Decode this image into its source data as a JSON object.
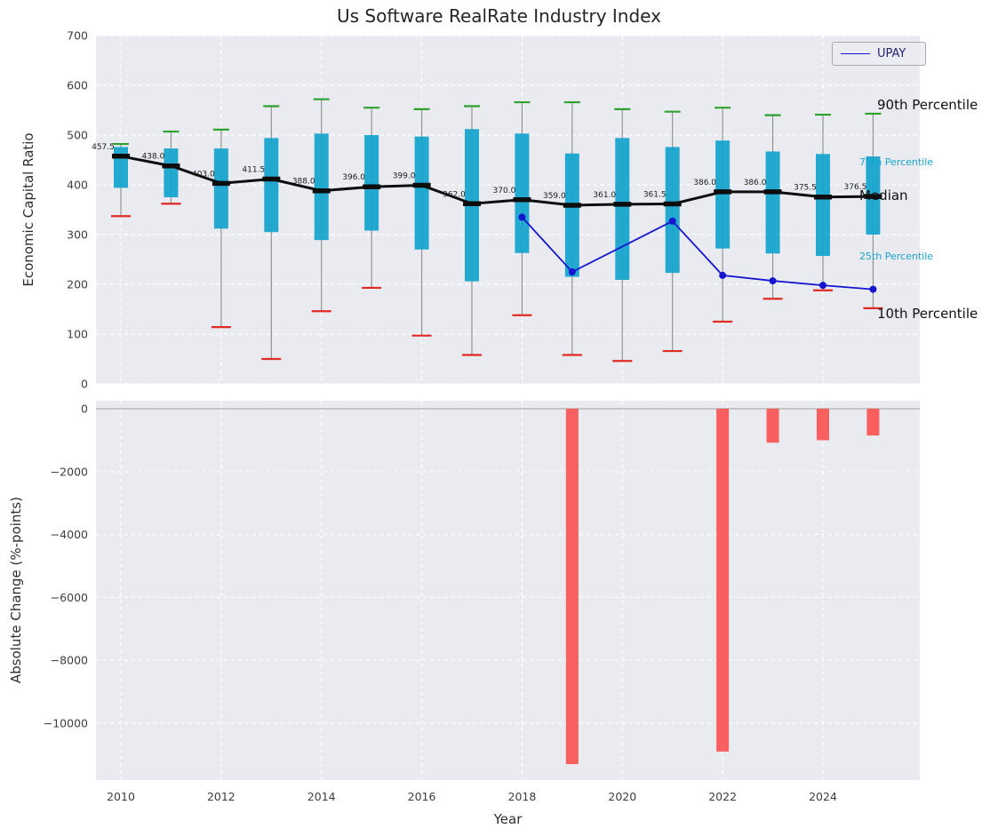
{
  "chart_data": {
    "type": "boxplot-line-bar-combo",
    "title": "Us Software RealRate Industry Index",
    "xlabel": "Year",
    "xticks": [
      2010,
      2012,
      2014,
      2016,
      2018,
      2020,
      2022,
      2024
    ],
    "top": {
      "ylabel": "Economic Capital Ratio",
      "ylim": [
        0,
        700
      ],
      "yticks": [
        0,
        100,
        200,
        300,
        400,
        500,
        600,
        700
      ],
      "years": [
        2010,
        2011,
        2012,
        2013,
        2014,
        2015,
        2016,
        2017,
        2018,
        2019,
        2020,
        2021,
        2022,
        2023,
        2024,
        2025
      ],
      "p90": [
        482,
        507,
        511,
        558,
        572,
        555,
        552,
        558,
        566,
        566,
        552,
        547,
        555,
        540,
        541,
        543
      ],
      "p75": [
        476,
        473,
        473,
        494,
        503,
        500,
        497,
        512,
        503,
        463,
        494,
        476,
        489,
        467,
        462,
        457
      ],
      "median": [
        457.5,
        438.0,
        403.0,
        411.5,
        388.0,
        396.0,
        399.0,
        362.0,
        370.0,
        359.0,
        361.0,
        361.5,
        386.0,
        386.0,
        375.5,
        376.5
      ],
      "p25": [
        394,
        375,
        312,
        305,
        289,
        308,
        270,
        206,
        263,
        215,
        209,
        223,
        272,
        262,
        257,
        300
      ],
      "p10": [
        337,
        362,
        114,
        50,
        146,
        193,
        97,
        58,
        138,
        58,
        46,
        66,
        125,
        171,
        188,
        152
      ],
      "upay": [
        null,
        null,
        null,
        null,
        null,
        null,
        null,
        null,
        335,
        225,
        null,
        327,
        218,
        207,
        198,
        190
      ],
      "legend": {
        "label": "UPAY"
      },
      "annotations": [
        {
          "label": "90th Percentile",
          "value": 560,
          "style": "large",
          "color": "black"
        },
        {
          "label": "75th Percentile",
          "value": 445,
          "style": "small",
          "color": "cyan"
        },
        {
          "label": "Median",
          "value": 378,
          "style": "large",
          "color": "black"
        },
        {
          "label": "25th Percentile",
          "value": 255,
          "style": "small",
          "color": "cyan"
        },
        {
          "label": "10th Percentile",
          "value": 140,
          "style": "large",
          "color": "black"
        }
      ]
    },
    "bottom": {
      "ylabel": "Absolute Change (%-points)",
      "yticks": [
        0,
        -2000,
        -4000,
        -6000,
        -8000,
        -10000
      ],
      "changes": [
        0,
        0,
        0,
        0,
        0,
        0,
        0,
        0,
        0,
        -11300,
        0,
        0,
        -10900,
        -1080,
        -1000,
        -850
      ]
    },
    "colors": {
      "plot_bg": "#eaebf0",
      "grid": "#ffffff",
      "box": "#18a5cd",
      "whisker": "#8b8b8b",
      "cap_low": "#e02a25",
      "cap_high": "#2ea12e",
      "median": "#0d0d0d",
      "upay": "#1515d0",
      "change_bar": "#fa4b49",
      "zero_line": "#9b9b9b",
      "percentile_label": "#1ba4cc",
      "tick_text": "#3d3d42",
      "median_label_text": "#1c1c1c"
    }
  }
}
